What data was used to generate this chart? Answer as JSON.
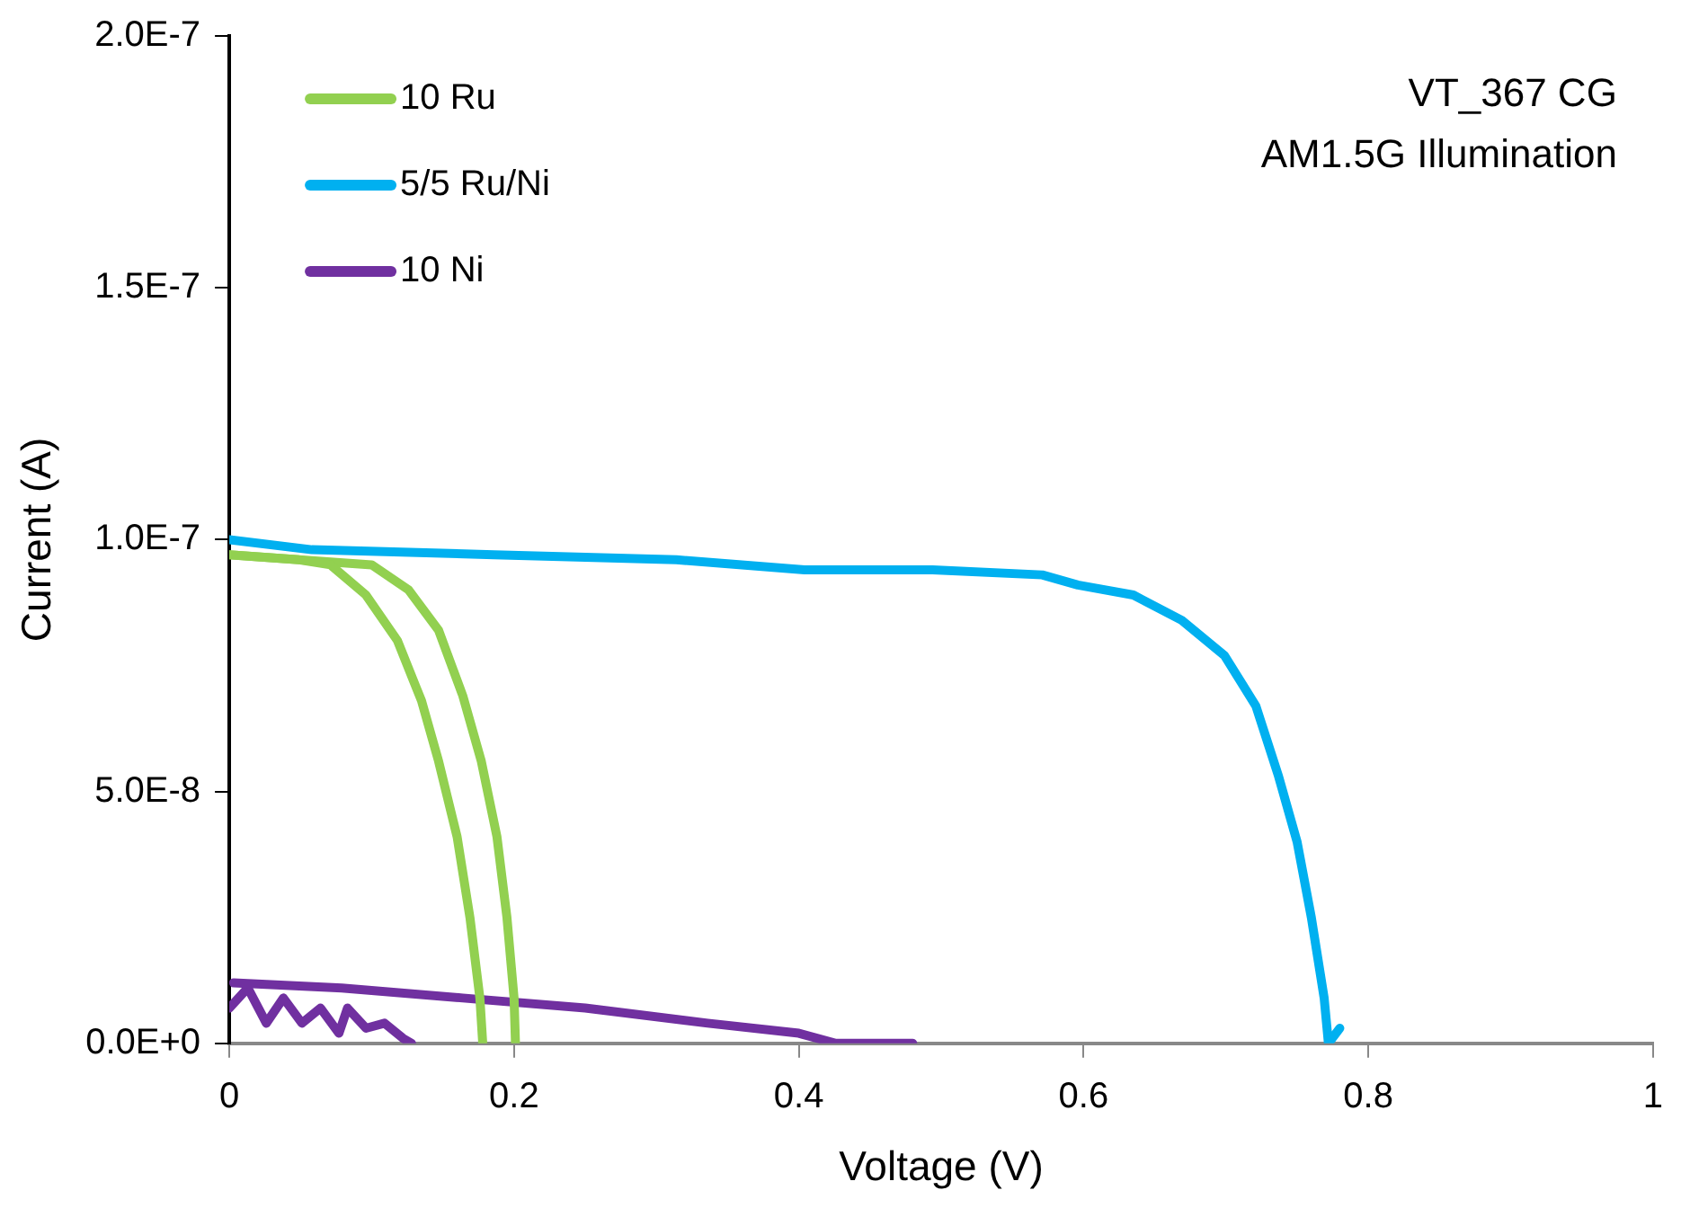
{
  "chart_data": {
    "type": "line",
    "xlabel": "Voltage (V)",
    "ylabel": "Current (A)",
    "annotations": [
      "VT_367 CG",
      "AM1.5G Illumination"
    ],
    "xlim": [
      0,
      1
    ],
    "xticks": [
      0,
      0.2,
      0.4,
      0.6,
      0.8,
      1
    ],
    "ylim": [
      0,
      2e-07
    ],
    "yticks": [
      {
        "value": 0,
        "label": "0.0E+0"
      },
      {
        "value": 5e-08,
        "label": "5.0E-8"
      },
      {
        "value": 1e-07,
        "label": "1.0E-7"
      },
      {
        "value": 1.5e-07,
        "label": "1.5E-7"
      },
      {
        "value": 2e-07,
        "label": "2.0E-7"
      }
    ],
    "grid": false,
    "legend": "top left",
    "marker": "none",
    "line_style": "solid",
    "series": [
      {
        "name": "10 Ru",
        "color": "#92d050",
        "x": [
          0,
          0.049,
          0.071,
          0.096,
          0.118,
          0.135,
          0.147,
          0.16,
          0.169,
          0.176,
          0.178
        ],
        "values": [
          9.7e-08,
          9.6e-08,
          9.5e-08,
          8.9e-08,
          8e-08,
          6.8e-08,
          5.6e-08,
          4.1e-08,
          2.5e-08,
          9e-09,
          0
        ]
      },
      {
        "color": "#92d050",
        "x": [
          0,
          0.1,
          0.126,
          0.147,
          0.164,
          0.177,
          0.188,
          0.195,
          0.2,
          0.201
        ],
        "values": [
          9.7e-08,
          9.5e-08,
          9e-08,
          8.2e-08,
          6.9e-08,
          5.6e-08,
          4.1e-08,
          2.5e-08,
          9e-09,
          0
        ]
      },
      {
        "name": "5/5 Ru/Ni",
        "color": "#00b0f0",
        "x": [
          0,
          0.058,
          0.186,
          0.314,
          0.404,
          0.494,
          0.571,
          0.596,
          0.635,
          0.669,
          0.699,
          0.721,
          0.737,
          0.75,
          0.76,
          0.769,
          0.772,
          0.78
        ],
        "values": [
          1e-07,
          9.8e-08,
          9.7e-08,
          9.6e-08,
          9.4e-08,
          9.4e-08,
          9.3e-08,
          9.1e-08,
          8.9e-08,
          8.4e-08,
          7.7e-08,
          6.7e-08,
          5.3e-08,
          4e-08,
          2.5e-08,
          9e-09,
          0,
          3e-09
        ]
      },
      {
        "name": "10 Ni",
        "color": "#7030a0",
        "x": [
          0.003,
          0.079,
          0.164,
          0.25,
          0.336,
          0.4,
          0.426,
          0.48
        ],
        "values": [
          1.2e-08,
          1.1e-08,
          9e-09,
          7e-09,
          4e-09,
          2e-09,
          0,
          0
        ]
      },
      {
        "color": "#7030a0",
        "x": [
          0,
          0.013,
          0.026,
          0.038,
          0.051,
          0.064,
          0.077,
          0.083,
          0.096,
          0.109,
          0.122,
          0.128
        ],
        "values": [
          7e-09,
          1.1e-08,
          4e-09,
          9e-09,
          4e-09,
          7e-09,
          2e-09,
          7e-09,
          3e-09,
          4e-09,
          1e-09,
          0
        ]
      }
    ]
  }
}
